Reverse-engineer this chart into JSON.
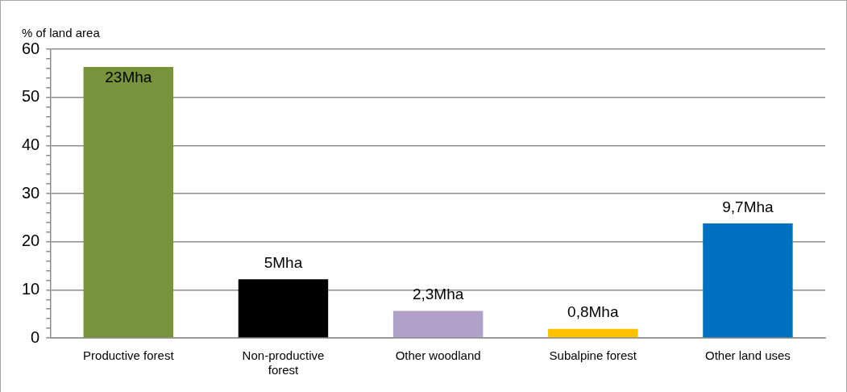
{
  "chart_data": {
    "type": "bar",
    "ylabel": "% of land area",
    "categories": [
      "Productive forest",
      "Non-productive forest",
      "Other woodland",
      "Subalpine forest",
      "Other land uses"
    ],
    "values": [
      56.3,
      12.2,
      5.6,
      1.9,
      23.8
    ],
    "colors": [
      "#77933c",
      "#000000",
      "#b1a0c7",
      "#ffc000",
      "#0070c0"
    ],
    "annotations": [
      {
        "text": "23Mha",
        "x": "Productive forest",
        "y": 56.3
      },
      {
        "text": "5Mha",
        "x": "Non-productive forest",
        "y": 12.2
      },
      {
        "text": "2,3Mha",
        "x": "Other woodland",
        "y": 5.6
      },
      {
        "text": "0,8Mha",
        "x": "Subalpine forest",
        "y": 1.9
      },
      {
        "text": "9,7Mha",
        "x": "Other land uses",
        "y": 23.8
      }
    ],
    "ylim": [
      0,
      60
    ],
    "yticks": [
      0,
      {
        "value": 2,
        "label": null
      },
      {
        "value": 4,
        "label": null
      },
      {
        "value": 6,
        "label": null
      },
      {
        "value": 8,
        "label": null
      },
      10,
      {
        "value": 12,
        "label": null
      },
      {
        "value": 14,
        "label": null
      },
      {
        "value": 16,
        "label": null
      },
      {
        "value": 18,
        "label": null
      },
      20,
      {
        "value": 22,
        "label": null
      },
      {
        "value": 24,
        "label": null
      },
      {
        "value": 26,
        "label": null
      },
      {
        "value": 28,
        "label": null
      },
      30,
      {
        "value": 32,
        "label": null
      },
      {
        "value": 34,
        "label": null
      },
      {
        "value": 36,
        "label": null
      },
      {
        "value": 38,
        "label": null
      },
      40,
      {
        "value": 42,
        "label": null
      },
      {
        "value": 44,
        "label": null
      },
      {
        "value": 46,
        "label": null
      },
      {
        "value": 48,
        "label": null
      },
      50,
      {
        "value": 52,
        "label": null
      },
      {
        "value": 54,
        "label": null
      },
      {
        "value": 56,
        "label": null
      },
      {
        "value": 58,
        "label": null
      },
      60
    ],
    "grid": "y",
    "legend": false
  }
}
